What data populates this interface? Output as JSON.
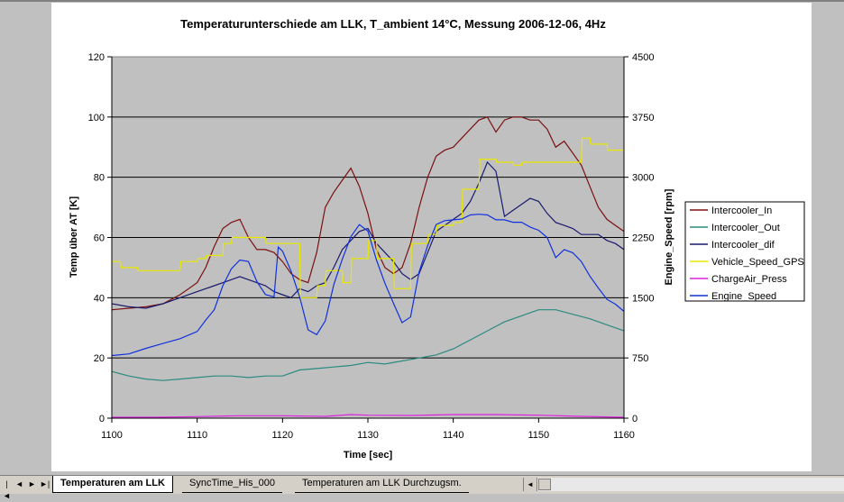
{
  "chart_data": {
    "type": "line",
    "title": "Temperaturunterschiede am LLK, T_ambient 14°C,  Messung 2006-12-06, 4Hz",
    "xlabel": "Time [sec]",
    "ylabel_left": "Temp über AT [K]",
    "ylabel_right": "Engine_Speed [rpm]",
    "xlim": [
      1100,
      1160
    ],
    "ylim_left": [
      0,
      120
    ],
    "ylim_right": [
      0,
      4500
    ],
    "x_ticks": [
      "1100",
      "1110",
      "1120",
      "1130",
      "1140",
      "1150",
      "1160"
    ],
    "y_ticks_left": [
      "0",
      "20",
      "40",
      "60",
      "80",
      "100",
      "120"
    ],
    "y_ticks_right": [
      "0",
      "750",
      "1500",
      "2250",
      "3000",
      "3750",
      "4500"
    ],
    "grid": "horizontal",
    "legend_position": "right",
    "series": [
      {
        "name": "Intercooler_In",
        "color": "#7b1010",
        "axis": "left",
        "x": [
          1100,
          1102,
          1104,
          1106,
          1108,
          1110,
          1111,
          1112,
          1113,
          1114,
          1115,
          1116,
          1117,
          1118,
          1119,
          1120,
          1121,
          1122,
          1123,
          1124,
          1125,
          1126,
          1127,
          1128,
          1129,
          1130,
          1131,
          1132,
          1133,
          1134,
          1135,
          1136,
          1137,
          1138,
          1139,
          1140,
          1141,
          1142,
          1143,
          1144,
          1145,
          1146,
          1147,
          1148,
          1149,
          1150,
          1151,
          1152,
          1153,
          1154,
          1155,
          1156,
          1157,
          1158,
          1159,
          1160
        ],
        "y": [
          36,
          36.5,
          37,
          38,
          41,
          45,
          50,
          57,
          63,
          65,
          66,
          60,
          56,
          56,
          55,
          52,
          48,
          46,
          45,
          55,
          70,
          75,
          79,
          83,
          77,
          68,
          56,
          50,
          48,
          50,
          58,
          70,
          80,
          87,
          89,
          90,
          93,
          96,
          99,
          100,
          95,
          99,
          100,
          100,
          99,
          99,
          96,
          90,
          92,
          88,
          84,
          77,
          70,
          66,
          64,
          62
        ]
      },
      {
        "name": "Intercooler_Out",
        "color": "#2a8a80",
        "axis": "left",
        "x": [
          1100,
          1102,
          1104,
          1106,
          1108,
          1110,
          1112,
          1114,
          1116,
          1118,
          1120,
          1122,
          1124,
          1126,
          1128,
          1130,
          1132,
          1134,
          1136,
          1138,
          1140,
          1142,
          1144,
          1146,
          1148,
          1150,
          1152,
          1154,
          1156,
          1158,
          1160
        ],
        "y": [
          15.5,
          14,
          13,
          12.5,
          13,
          13.5,
          14,
          14,
          13.5,
          14,
          14,
          16,
          16.5,
          17,
          17.5,
          18.5,
          18,
          19,
          20,
          21,
          23,
          26,
          29,
          32,
          34,
          36,
          36,
          34.5,
          33,
          31,
          29
        ]
      },
      {
        "name": "Intercooler_dif",
        "color": "#1a1a6e",
        "axis": "left",
        "x": [
          1100,
          1102,
          1104,
          1106,
          1108,
          1110,
          1112,
          1114,
          1115,
          1116,
          1118,
          1119,
          1120,
          1121,
          1122,
          1123,
          1124,
          1125,
          1126,
          1127,
          1128,
          1129,
          1130,
          1131,
          1132,
          1133,
          1134,
          1135,
          1136,
          1137,
          1138,
          1139,
          1140,
          1141,
          1142,
          1143,
          1144,
          1145,
          1146,
          1147,
          1148,
          1149,
          1150,
          1151,
          1152,
          1153,
          1154,
          1155,
          1156,
          1157,
          1158,
          1159,
          1160
        ],
        "y": [
          38,
          37,
          36.5,
          38,
          40,
          42,
          44,
          46,
          47,
          46,
          44,
          42,
          41,
          40,
          43,
          42,
          44,
          45,
          50,
          56,
          59,
          62,
          63,
          58,
          55,
          52,
          48,
          46,
          48,
          55,
          62,
          64,
          66,
          68,
          72,
          78,
          85,
          82,
          67,
          69,
          71,
          73,
          72,
          68,
          65,
          64,
          63,
          61,
          61,
          61,
          59,
          58,
          56
        ]
      },
      {
        "name": "Vehicle_Speed_GPS",
        "color": "#e8e800",
        "axis": "left",
        "x": [
          1100,
          1101,
          1101.1,
          1103,
          1103.1,
          1108,
          1108.1,
          1110,
          1110.1,
          1111,
          1111.1,
          1113,
          1113.1,
          1114,
          1114.1,
          1118,
          1118.1,
          1122,
          1122.1,
          1124,
          1124.1,
          1125,
          1125.1,
          1127,
          1127.1,
          1128,
          1128.1,
          1130,
          1130.1,
          1131,
          1131.1,
          1133,
          1133.1,
          1135,
          1135.1,
          1137,
          1137.1,
          1138,
          1138.1,
          1140,
          1140.1,
          1141,
          1141.1,
          1143,
          1143.1,
          1145,
          1145.1,
          1147,
          1147.1,
          1148,
          1148.1,
          1155,
          1155.1,
          1156,
          1156.1,
          1158,
          1158.1,
          1160
        ],
        "y": [
          52,
          52,
          50,
          50,
          49,
          49,
          52,
          52,
          53,
          53,
          54,
          54,
          58,
          58,
          60,
          60,
          58,
          58,
          40,
          40,
          44,
          44,
          49,
          49,
          45,
          45,
          53,
          53,
          59,
          59,
          53,
          53,
          43,
          43,
          58,
          58,
          61,
          61,
          64,
          64,
          65,
          65,
          76,
          76,
          86,
          86,
          85,
          85,
          84,
          84,
          85,
          85,
          93,
          93,
          91,
          91,
          89,
          89
        ]
      },
      {
        "name": "ChargeAir_Press",
        "color": "#e020e0",
        "axis": "left",
        "x": [
          1100,
          1105,
          1110,
          1115,
          1120,
          1125,
          1128,
          1130,
          1135,
          1140,
          1145,
          1150,
          1155,
          1160
        ],
        "y": [
          0.3,
          0.3,
          0.5,
          0.8,
          0.8,
          0.6,
          1.2,
          1.0,
          0.9,
          1.2,
          1.2,
          1.0,
          0.6,
          0.3
        ]
      },
      {
        "name": "Engine_Speed",
        "color": "#1030e0",
        "axis": "right",
        "x": [
          1100,
          1102,
          1104,
          1106,
          1108,
          1110,
          1111,
          1112,
          1113,
          1114,
          1115,
          1116,
          1117,
          1118,
          1119,
          1119.5,
          1120,
          1121,
          1122,
          1123,
          1124,
          1125,
          1126,
          1127,
          1128,
          1129,
          1130,
          1131,
          1132,
          1133,
          1134,
          1135,
          1136,
          1137,
          1138,
          1139,
          1140,
          1141,
          1142,
          1143,
          1144,
          1145,
          1146,
          1147,
          1148,
          1149,
          1150,
          1151,
          1152,
          1153,
          1154,
          1155,
          1156,
          1157,
          1158,
          1159,
          1160
        ],
        "y": [
          780,
          800,
          870,
          930,
          990,
          1080,
          1220,
          1350,
          1650,
          1860,
          1970,
          1950,
          1700,
          1540,
          1510,
          2130,
          2080,
          1830,
          1510,
          1100,
          1040,
          1210,
          1660,
          1980,
          2260,
          2410,
          2330,
          1970,
          1680,
          1430,
          1190,
          1260,
          1820,
          2150,
          2410,
          2460,
          2470,
          2480,
          2530,
          2540,
          2530,
          2470,
          2470,
          2440,
          2440,
          2380,
          2340,
          2250,
          2000,
          2100,
          2060,
          1950,
          1770,
          1620,
          1480,
          1420,
          1330
        ]
      }
    ]
  },
  "sheet_tabs": [
    "Temperaturen am LLK",
    "SyncTime_His_000",
    "Temperaturen am LLK Durchzugsm."
  ],
  "nav_buttons": [
    "|◄",
    "◄",
    "►",
    "►|"
  ],
  "scroll_left_arrow": "◄"
}
